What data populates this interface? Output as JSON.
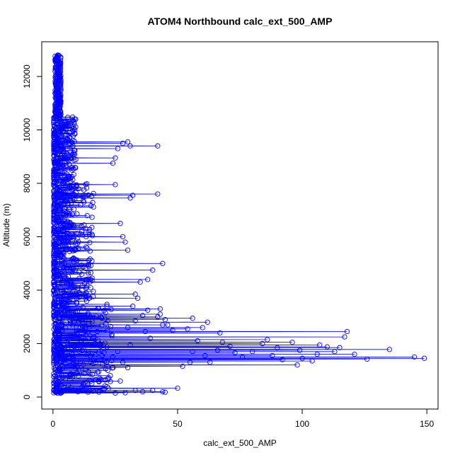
{
  "chart_data": {
    "type": "scatter",
    "title": "ATOM4 Northbound calc_ext_500_AMP",
    "xlabel": "calc_ext_500_AMP",
    "ylabel": "Altitude (m)",
    "xlim": [
      -4.5,
      154.5
    ],
    "ylim": [
      -450,
      13300
    ],
    "x_ticks": [
      0,
      50,
      100,
      150
    ],
    "y_ticks": [
      0,
      2000,
      4000,
      6000,
      8000,
      10000,
      12000
    ],
    "x_tick_labels": [
      "0",
      "50",
      "100",
      "150"
    ],
    "y_tick_labels": [
      "0",
      "2000",
      "4000",
      "6000",
      "8000",
      "10000",
      "12000"
    ],
    "grid": false,
    "legend": "none",
    "series_style": {
      "color": "#0000ff",
      "marker": "open-circle",
      "connected": true
    },
    "outlier_points": [
      [
        149,
        1450
      ],
      [
        145,
        1500
      ],
      [
        135,
        1780
      ],
      [
        126,
        1420
      ],
      [
        121,
        1600
      ],
      [
        118,
        2450
      ],
      [
        117,
        2250
      ],
      [
        115,
        1850
      ],
      [
        113,
        1700
      ],
      [
        110,
        1880
      ],
      [
        107,
        1950
      ],
      [
        106,
        1600
      ],
      [
        104,
        1350
      ],
      [
        100,
        1450
      ],
      [
        99,
        1750
      ],
      [
        98,
        1200
      ],
      [
        96,
        2050
      ],
      [
        92,
        1400
      ],
      [
        90,
        1850
      ],
      [
        88,
        1550
      ],
      [
        86,
        2150
      ],
      [
        84,
        2000
      ],
      [
        80,
        1700
      ],
      [
        76,
        1500
      ],
      [
        73,
        1650
      ],
      [
        71,
        1900
      ],
      [
        68,
        2050
      ],
      [
        66,
        1750
      ],
      [
        63,
        1300
      ],
      [
        61,
        1550
      ],
      [
        58,
        2100
      ],
      [
        56,
        1700
      ],
      [
        55,
        1300
      ],
      [
        52,
        1150
      ],
      [
        62,
        2800
      ],
      [
        56,
        2950
      ],
      [
        60,
        2600
      ],
      [
        54,
        2550
      ],
      [
        67,
        2400
      ],
      [
        48,
        2500
      ],
      [
        46,
        2700
      ],
      [
        45,
        2900
      ],
      [
        43,
        3100
      ],
      [
        43,
        3300
      ],
      [
        42,
        3000
      ],
      [
        44,
        2700
      ],
      [
        42,
        9400
      ],
      [
        31,
        9400
      ],
      [
        30,
        9550
      ],
      [
        26,
        9300
      ],
      [
        28,
        9500
      ],
      [
        25,
        8950
      ],
      [
        24,
        8750
      ],
      [
        25,
        7950
      ],
      [
        42,
        7600
      ],
      [
        32,
        7550
      ],
      [
        31,
        7450
      ],
      [
        28,
        6000
      ],
      [
        29,
        5800
      ],
      [
        27,
        6500
      ],
      [
        30,
        5500
      ],
      [
        44,
        5000
      ],
      [
        40,
        4750
      ],
      [
        38,
        4400
      ],
      [
        35,
        4300
      ],
      [
        33,
        3850
      ],
      [
        34,
        3700
      ],
      [
        32,
        3400
      ],
      [
        38,
        3250
      ],
      [
        36,
        3050
      ],
      [
        33,
        2850
      ],
      [
        30,
        2600
      ],
      [
        37,
        2450
      ],
      [
        39,
        2200
      ],
      [
        31,
        1950
      ],
      [
        26,
        1700
      ],
      [
        24,
        1500
      ],
      [
        28,
        1300
      ],
      [
        30,
        1100
      ],
      [
        22,
        1000
      ],
      [
        23,
        800
      ],
      [
        27,
        600
      ],
      [
        44,
        200
      ],
      [
        40,
        250
      ],
      [
        36,
        200
      ],
      [
        33,
        250
      ],
      [
        45,
        180
      ],
      [
        50,
        330
      ],
      [
        29,
        160
      ],
      [
        25,
        150
      ],
      [
        20,
        300
      ],
      [
        18,
        250
      ],
      [
        16,
        220
      ],
      [
        14,
        180
      ],
      [
        12,
        260
      ],
      [
        10,
        200
      ]
    ]
  }
}
